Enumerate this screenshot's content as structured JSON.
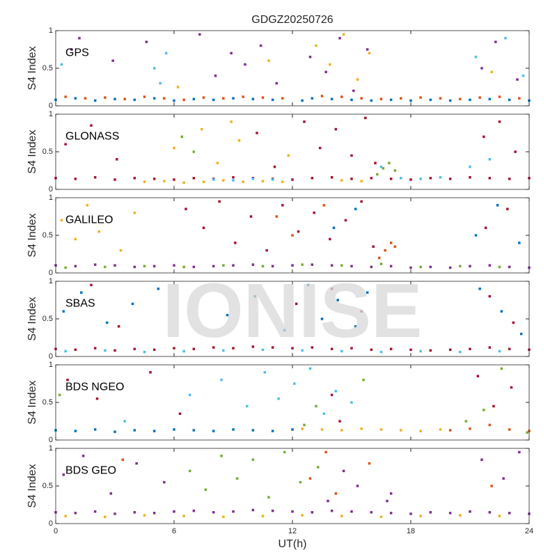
{
  "watermark": "IONISE",
  "chart_data": [
    {
      "type": "scatter",
      "title": "GDGZ20250726",
      "label": "GPS",
      "ylabel": "S4 Index",
      "xlim": [
        0,
        24
      ],
      "ylim": [
        0,
        1
      ],
      "xticks": [
        0,
        6,
        12,
        18,
        24
      ],
      "yticks": [
        0,
        0.5,
        1
      ],
      "series": [
        {
          "color": "#0072BD",
          "x": [
            0,
            1,
            2,
            3,
            4,
            5,
            6,
            7,
            8,
            9,
            10,
            11,
            12.5,
            13,
            14,
            15,
            16,
            17,
            18,
            19,
            20,
            21,
            22,
            23,
            24
          ],
          "values": [
            0.08,
            0.1,
            0.07,
            0.09,
            0.08,
            0.1,
            0.07,
            0.09,
            0.08,
            0.1,
            0.09,
            0.08,
            0.07,
            0.1,
            0.09,
            0.08,
            0.07,
            0.08,
            0.07,
            0.08,
            0.07,
            0.08,
            0.09,
            0.08,
            0.07
          ]
        },
        {
          "color": "#D95319",
          "x": [
            0.5,
            1.5,
            2.5,
            3.5,
            4.5,
            5.5,
            6.5,
            7.5,
            8.5,
            9.5,
            10.5,
            11.5,
            13.5,
            14.5,
            15.5,
            16.5,
            17.5,
            18.5,
            19.5,
            20.5,
            21.5,
            22.5,
            23.5
          ],
          "values": [
            0.12,
            0.1,
            0.11,
            0.09,
            0.12,
            0.1,
            0.08,
            0.11,
            0.1,
            0.12,
            0.11,
            0.1,
            0.13,
            0.12,
            0.1,
            0.09,
            0.1,
            0.11,
            0.1,
            0.09,
            0.11,
            0.12,
            0.1
          ]
        },
        {
          "color": "#7E2F8E",
          "x": [
            0.8,
            1.2,
            2.9,
            4.6,
            7.3,
            8.1,
            8.9,
            9.6,
            10.4,
            11.2,
            12.9,
            13.7,
            14.4,
            15.1,
            15.8,
            21.6,
            22.3,
            23.4
          ],
          "values": [
            0.75,
            0.9,
            0.6,
            0.85,
            0.95,
            0.4,
            0.7,
            0.55,
            0.8,
            0.3,
            0.65,
            0.45,
            0.9,
            0.2,
            0.75,
            0.5,
            0.85,
            0.35
          ]
        },
        {
          "color": "#EDB120",
          "x": [
            13.2,
            13.9,
            14.6,
            15.3,
            15.9,
            6.2,
            10.8,
            22.1
          ],
          "values": [
            0.8,
            0.55,
            0.95,
            0.35,
            0.7,
            0.25,
            0.6,
            0.45
          ]
        },
        {
          "color": "#4DBEEE",
          "x": [
            5.0,
            5.3,
            5.6,
            21.3,
            22.8,
            23.7,
            0.3
          ],
          "values": [
            0.5,
            0.3,
            0.7,
            0.65,
            0.9,
            0.4,
            0.55
          ]
        }
      ]
    },
    {
      "type": "scatter",
      "label": "GLONASS",
      "ylabel": "S4 Index",
      "xlim": [
        0,
        24
      ],
      "ylim": [
        0,
        1
      ],
      "xticks": [
        0,
        6,
        12,
        18,
        24
      ],
      "yticks": [
        0,
        0.5,
        1
      ],
      "series": [
        {
          "color": "#A2142F",
          "x": [
            0,
            1,
            2,
            3,
            4,
            5,
            6,
            7,
            8,
            9,
            10,
            11,
            12,
            13,
            14,
            15,
            16,
            17,
            18,
            19,
            20,
            21,
            22,
            23,
            24
          ],
          "values": [
            0.15,
            0.14,
            0.16,
            0.13,
            0.15,
            0.14,
            0.13,
            0.15,
            0.14,
            0.16,
            0.15,
            0.14,
            0.13,
            0.15,
            0.16,
            0.14,
            0.15,
            0.14,
            0.13,
            0.15,
            0.14,
            0.16,
            0.15,
            0.14,
            0.15
          ]
        },
        {
          "color": "#EDB120",
          "x": [
            4.5,
            5.5,
            6.5,
            7.5,
            8.5,
            9.5,
            10.5,
            11.5,
            14.5,
            15.5
          ],
          "values": [
            0.1,
            0.11,
            0.09,
            0.1,
            0.12,
            0.1,
            0.11,
            0.1,
            0.12,
            0.11
          ]
        },
        {
          "color": "#4DBEEE",
          "x": [
            8.0,
            9.0,
            10.0,
            11.0,
            16.5,
            17.5,
            18.5,
            19.5,
            21.0,
            22.0
          ],
          "values": [
            0.13,
            0.12,
            0.14,
            0.13,
            0.3,
            0.15,
            0.14,
            0.16,
            0.3,
            0.4
          ]
        },
        {
          "color": "#A2142F",
          "x": [
            0.5,
            1.8,
            3.1,
            10.2,
            11.1,
            12.6,
            13.4,
            14.2,
            15.0,
            15.7,
            16.2,
            21.7,
            22.5,
            23.3
          ],
          "values": [
            0.6,
            0.85,
            0.4,
            0.75,
            0.3,
            0.9,
            0.55,
            0.8,
            0.45,
            0.95,
            0.35,
            0.7,
            0.9,
            0.5
          ]
        },
        {
          "color": "#EDB120",
          "x": [
            6.0,
            7.4,
            8.2,
            8.9,
            9.3,
            11.8
          ],
          "values": [
            0.55,
            0.8,
            0.35,
            0.9,
            0.65,
            0.45
          ]
        },
        {
          "color": "#77AC30",
          "x": [
            16.3,
            16.6,
            16.9,
            17.2,
            6.4,
            7.0
          ],
          "values": [
            0.2,
            0.28,
            0.35,
            0.25,
            0.7,
            0.5
          ]
        }
      ]
    },
    {
      "type": "scatter",
      "label": "GALILEO",
      "ylabel": "S4 Index",
      "xlim": [
        0,
        24
      ],
      "ylim": [
        0,
        1
      ],
      "xticks": [
        0,
        6,
        12,
        18,
        24
      ],
      "yticks": [
        0,
        0.5,
        1
      ],
      "series": [
        {
          "color": "#7E2F8E",
          "x": [
            0,
            1,
            2,
            3,
            4,
            5,
            6,
            7,
            8,
            9,
            10,
            11,
            12,
            13,
            14,
            15,
            16,
            17,
            18,
            19,
            20,
            21,
            22,
            23,
            24
          ],
          "values": [
            0.1,
            0.09,
            0.11,
            0.1,
            0.08,
            0.09,
            0.1,
            0.08,
            0.09,
            0.1,
            0.11,
            0.09,
            0.1,
            0.11,
            0.1,
            0.09,
            0.08,
            0.09,
            0.07,
            0.08,
            0.07,
            0.09,
            0.1,
            0.08,
            0.07
          ]
        },
        {
          "color": "#77AC30",
          "x": [
            0.5,
            2.5,
            4.5,
            6.5,
            8.5,
            10.5,
            12.5,
            14.5,
            16.5,
            18.5,
            20.5,
            22.5
          ],
          "values": [
            0.07,
            0.08,
            0.09,
            0.08,
            0.1,
            0.09,
            0.11,
            0.1,
            0.12,
            0.08,
            0.09,
            0.08
          ]
        },
        {
          "color": "#A2142F",
          "x": [
            6.6,
            7.5,
            8.3,
            9.1,
            9.9,
            10.7,
            11.5,
            12.3,
            13.1,
            13.9,
            14.7,
            15.5,
            16.1,
            21.8,
            22.9
          ],
          "values": [
            0.85,
            0.6,
            0.95,
            0.4,
            0.75,
            0.3,
            0.9,
            0.55,
            0.8,
            0.45,
            0.7,
            0.95,
            0.35,
            0.6,
            0.85
          ]
        },
        {
          "color": "#D95319",
          "x": [
            16.4,
            16.7,
            17.0,
            17.2,
            11.2,
            12.0,
            13.6
          ],
          "values": [
            0.2,
            0.3,
            0.4,
            0.35,
            0.75,
            0.5,
            0.9
          ]
        },
        {
          "color": "#EDB120",
          "x": [
            0.3,
            1.0,
            1.6,
            2.2,
            3.3,
            4.0
          ],
          "values": [
            0.7,
            0.45,
            0.9,
            0.55,
            0.3,
            0.8
          ]
        },
        {
          "color": "#0072BD",
          "x": [
            14.1,
            15.2,
            21.3,
            22.4,
            23.5
          ],
          "values": [
            0.6,
            0.85,
            0.5,
            0.9,
            0.4
          ]
        }
      ]
    },
    {
      "type": "scatter",
      "label": "SBAS",
      "ylabel": "S4 Index",
      "xlim": [
        0,
        24
      ],
      "ylim": [
        0,
        1
      ],
      "xticks": [
        0,
        6,
        12,
        18,
        24
      ],
      "yticks": [
        0,
        0.5,
        1
      ],
      "series": [
        {
          "color": "#A2142F",
          "x": [
            0,
            1,
            2,
            3,
            4,
            5,
            6,
            7,
            8,
            9,
            10,
            11,
            12,
            13,
            14,
            15,
            16,
            17,
            18,
            19,
            20,
            21,
            22,
            23,
            24
          ],
          "values": [
            0.1,
            0.09,
            0.11,
            0.08,
            0.1,
            0.09,
            0.11,
            0.1,
            0.12,
            0.11,
            0.13,
            0.12,
            0.11,
            0.12,
            0.1,
            0.11,
            0.09,
            0.1,
            0.09,
            0.08,
            0.09,
            0.1,
            0.12,
            0.1,
            0.09
          ]
        },
        {
          "color": "#4DBEEE",
          "x": [
            0.5,
            2.5,
            4.5,
            6.5,
            8.5,
            10.5,
            12.5,
            14.5,
            16.5,
            18.5,
            20.5,
            22.5
          ],
          "values": [
            0.07,
            0.08,
            0.06,
            0.07,
            0.08,
            0.09,
            0.08,
            0.07,
            0.06,
            0.07,
            0.06,
            0.07
          ]
        },
        {
          "color": "#0072BD",
          "x": [
            0.4,
            1.3,
            2.6,
            3.9,
            5.2,
            8.7,
            10.1,
            11.6,
            12.8,
            13.5,
            14.3,
            15.2,
            15.8,
            21.5,
            22.6,
            23.6
          ],
          "values": [
            0.6,
            0.85,
            0.45,
            0.7,
            0.9,
            0.55,
            0.8,
            0.35,
            0.95,
            0.5,
            0.75,
            0.4,
            0.85,
            0.9,
            0.6,
            0.3
          ]
        },
        {
          "color": "#A2142F",
          "x": [
            1.8,
            3.2,
            12.2,
            14.0,
            15.5,
            22.0,
            23.2
          ],
          "values": [
            0.95,
            0.4,
            0.7,
            0.9,
            0.6,
            0.8,
            0.45
          ]
        }
      ]
    },
    {
      "type": "scatter",
      "label": "BDS NGEO",
      "ylabel": "S4 Index",
      "xlim": [
        0,
        24
      ],
      "ylim": [
        0,
        1
      ],
      "xticks": [
        0,
        6,
        12,
        18,
        24
      ],
      "yticks": [
        0,
        0.5,
        1
      ],
      "series": [
        {
          "color": "#0072BD",
          "x": [
            0,
            1,
            2,
            3,
            4,
            5,
            6,
            7,
            8,
            9,
            10,
            11,
            12
          ],
          "values": [
            0.13,
            0.12,
            0.14,
            0.11,
            0.13,
            0.12,
            0.14,
            0.13,
            0.12,
            0.14,
            0.13,
            0.12,
            0.14
          ]
        },
        {
          "color": "#EDB120",
          "x": [
            12.5,
            13.5,
            14.5,
            15.5,
            16.5,
            17.5,
            18.5,
            19.5
          ],
          "values": [
            0.15,
            0.14,
            0.13,
            0.15,
            0.14,
            0.13,
            0.12,
            0.14
          ]
        },
        {
          "color": "#D95319",
          "x": [
            20,
            21,
            22,
            23,
            24
          ],
          "values": [
            0.13,
            0.15,
            0.2,
            0.14,
            0.12
          ]
        },
        {
          "color": "#4DBEEE",
          "x": [
            3.5,
            6.8,
            8.4,
            9.7,
            10.6,
            11.3,
            12.1,
            12.9,
            13.6,
            14.2,
            15.0
          ],
          "values": [
            0.25,
            0.6,
            0.8,
            0.45,
            0.9,
            0.55,
            0.75,
            0.95,
            0.35,
            0.65,
            0.5
          ]
        },
        {
          "color": "#A2142F",
          "x": [
            0.6,
            2.1,
            4.8,
            6.3,
            14.0,
            14.4,
            21.4,
            22.2,
            23.1
          ],
          "values": [
            0.8,
            0.55,
            0.9,
            0.35,
            0.6,
            0.25,
            0.85,
            0.45,
            0.7
          ]
        },
        {
          "color": "#77AC30",
          "x": [
            0.2,
            12.6,
            13.2,
            15.6,
            20.8,
            21.7,
            22.6,
            23.9
          ],
          "values": [
            0.6,
            0.2,
            0.45,
            0.8,
            0.25,
            0.4,
            0.95,
            0.1
          ]
        }
      ]
    },
    {
      "type": "scatter",
      "label": "BDS GEO",
      "xlabel": "UT(h)",
      "ylabel": "S4 Index",
      "xlim": [
        0,
        24
      ],
      "ylim": [
        0,
        1
      ],
      "xticks": [
        0,
        6,
        12,
        18,
        24
      ],
      "yticks": [
        0,
        0.5,
        1
      ],
      "series": [
        {
          "color": "#7E2F8E",
          "x": [
            0,
            1,
            2,
            3,
            4,
            5,
            6,
            7,
            8,
            9,
            10,
            11,
            12,
            13,
            14,
            15,
            16,
            17,
            18,
            19,
            20,
            21,
            22,
            23,
            24
          ],
          "values": [
            0.15,
            0.14,
            0.16,
            0.13,
            0.15,
            0.14,
            0.16,
            0.17,
            0.15,
            0.16,
            0.18,
            0.17,
            0.16,
            0.15,
            0.17,
            0.16,
            0.15,
            0.14,
            0.13,
            0.15,
            0.14,
            0.16,
            0.15,
            0.14,
            0.13
          ]
        },
        {
          "color": "#EDB120",
          "x": [
            0.5,
            2.5,
            4.5,
            6.5,
            8.5,
            10.5,
            12.5,
            14.5,
            16.5,
            18.5,
            20.5,
            22.5
          ],
          "values": [
            0.1,
            0.09,
            0.11,
            0.1,
            0.09,
            0.1,
            0.11,
            0.1,
            0.09,
            0.1,
            0.11,
            0.1
          ]
        },
        {
          "color": "#77AC30",
          "x": [
            6.8,
            7.6,
            8.4,
            9.2,
            10.0,
            10.8,
            11.6,
            12.4,
            13.3
          ],
          "values": [
            0.7,
            0.45,
            0.9,
            0.6,
            0.85,
            0.35,
            0.95,
            0.55,
            0.75
          ]
        },
        {
          "color": "#7E2F8E",
          "x": [
            0.4,
            1.4,
            2.8,
            4.1,
            5.5,
            13.8,
            14.6,
            15.3,
            16.8,
            17.0,
            21.6,
            22.7,
            23.5
          ],
          "values": [
            0.65,
            0.9,
            0.4,
            0.8,
            0.55,
            0.3,
            0.7,
            0.5,
            0.3,
            0.4,
            0.85,
            0.6,
            0.95
          ]
        },
        {
          "color": "#D95319",
          "x": [
            3.4,
            12.9,
            13.7,
            14.2,
            15.9,
            22.1
          ],
          "values": [
            0.85,
            0.6,
            0.95,
            0.4,
            0.8,
            0.5
          ]
        }
      ]
    }
  ]
}
